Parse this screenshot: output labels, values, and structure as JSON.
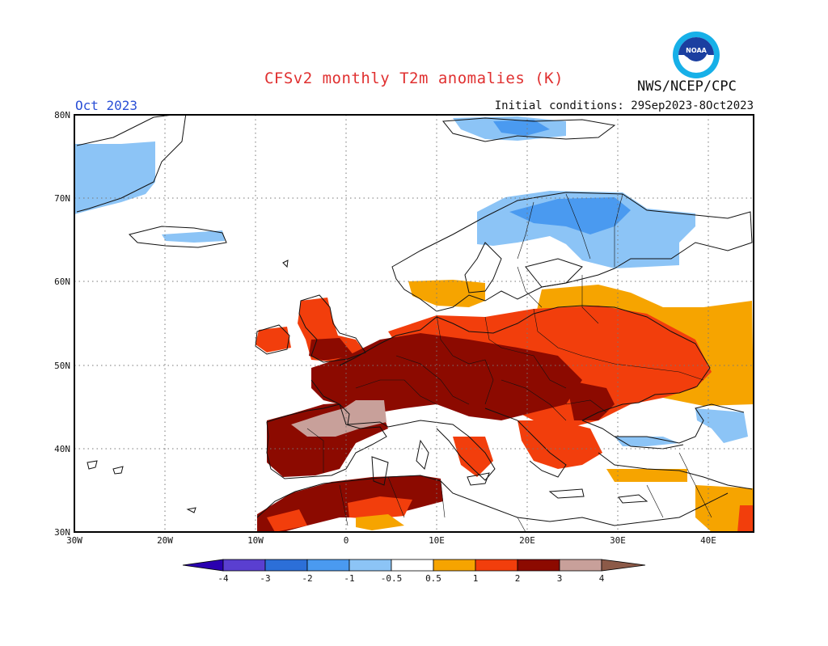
{
  "header": {
    "title": "CFSv2 monthly T2m anomalies (K)",
    "organization": "NWS/NCEP/CPC",
    "month": "Oct 2023",
    "initial_conditions": "Initial conditions: 29Sep2023-8Oct2023",
    "logo_text": "NOAA"
  },
  "axes": {
    "lon_labels": [
      "30W",
      "20W",
      "10W",
      "0",
      "10E",
      "20E",
      "30E",
      "40E"
    ],
    "lat_labels": [
      "80N",
      "70N",
      "60N",
      "50N",
      "40N",
      "30N"
    ]
  },
  "colorbar": {
    "labels": [
      "-4",
      "-3",
      "-2",
      "-1",
      "-0.5",
      "0.5",
      "1",
      "2",
      "3",
      "4"
    ],
    "colors": {
      "below_-4": "#2a00b0",
      "-4_-3": "#5a3fd0",
      "-3_-2": "#2c6fd8",
      "-2_-1": "#4a9af0",
      "-1_-0.5": "#8cc4f6",
      "0.5_1": "#f6a400",
      "1_2": "#f23e0c",
      "2_3": "#8c0a00",
      "3_4": "#c8a09a",
      "above_4": "#8c5a48"
    }
  }
}
